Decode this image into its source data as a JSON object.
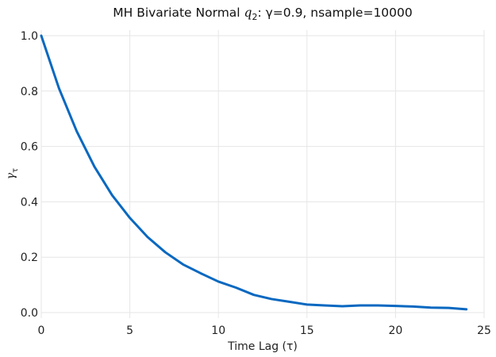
{
  "chart_data": {
    "type": "line",
    "title_prefix": "MH Bivariate Normal ",
    "title_math": "q",
    "title_math_sub": "2",
    "title_suffix": ": γ=0.9, nsample=10000",
    "xlabel": "Time Lag (τ)",
    "ylabel_math": "γ",
    "ylabel_math_sub": "τ",
    "xlim": [
      0,
      25
    ],
    "ylim": [
      -0.02,
      1.02
    ],
    "xticks": [
      0,
      5,
      10,
      15,
      20,
      25
    ],
    "xtick_labels": [
      "0",
      "5",
      "10",
      "15",
      "20",
      "25"
    ],
    "yticks": [
      0.0,
      0.2,
      0.4,
      0.6,
      0.8,
      1.0
    ],
    "ytick_labels": [
      "0.0",
      "0.2",
      "0.4",
      "0.6",
      "0.8",
      "1.0"
    ],
    "grid": true,
    "series": [
      {
        "color": "#0868c0",
        "x": [
          0,
          1,
          2,
          3,
          4,
          5,
          6,
          7,
          8,
          9,
          10,
          11,
          12,
          13,
          14,
          15,
          16,
          17,
          18,
          19,
          20,
          21,
          22,
          23,
          24
        ],
        "y": [
          1.0,
          0.81,
          0.655,
          0.527,
          0.424,
          0.342,
          0.273,
          0.218,
          0.174,
          0.142,
          0.112,
          0.09,
          0.064,
          0.049,
          0.039,
          0.029,
          0.026,
          0.023,
          0.026,
          0.026,
          0.024,
          0.022,
          0.018,
          0.017,
          0.012
        ]
      }
    ]
  }
}
